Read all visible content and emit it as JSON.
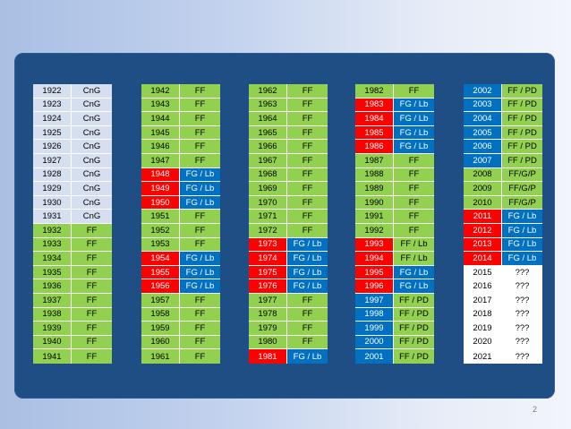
{
  "colors": {
    "light": "#d6dff0",
    "green": "#92d050",
    "red": "#ff0000",
    "blue": "#0070c0",
    "white": "#ffffff",
    "panel": "#1f4e85"
  },
  "columns": [
    {
      "rows": [
        {
          "year": "1922",
          "val": "CnG",
          "yc": "light",
          "vc": "light"
        },
        {
          "year": "1923",
          "val": "CnG",
          "yc": "light",
          "vc": "light"
        },
        {
          "year": "1924",
          "val": "CnG",
          "yc": "light",
          "vc": "light"
        },
        {
          "year": "1925",
          "val": "CnG",
          "yc": "light",
          "vc": "light"
        },
        {
          "year": "1926",
          "val": "CnG",
          "yc": "light",
          "vc": "light"
        },
        {
          "year": "1927",
          "val": "CnG",
          "yc": "light",
          "vc": "light"
        },
        {
          "year": "1928",
          "val": "CnG",
          "yc": "light",
          "vc": "light"
        },
        {
          "year": "1929",
          "val": "CnG",
          "yc": "light",
          "vc": "light"
        },
        {
          "year": "1930",
          "val": "CnG",
          "yc": "light",
          "vc": "light"
        },
        {
          "year": "1931",
          "val": "CnG",
          "yc": "light",
          "vc": "light"
        },
        {
          "year": "1932",
          "val": "FF",
          "yc": "green",
          "vc": "green"
        },
        {
          "year": "1933",
          "val": "FF",
          "yc": "green",
          "vc": "green"
        },
        {
          "year": "1934",
          "val": "FF",
          "yc": "green",
          "vc": "green"
        },
        {
          "year": "1935",
          "val": "FF",
          "yc": "green",
          "vc": "green"
        },
        {
          "year": "1936",
          "val": "FF",
          "yc": "green",
          "vc": "green"
        },
        {
          "year": "1937",
          "val": "FF",
          "yc": "green",
          "vc": "green"
        },
        {
          "year": "1938",
          "val": "FF",
          "yc": "green",
          "vc": "green"
        },
        {
          "year": "1939",
          "val": "FF",
          "yc": "green",
          "vc": "green"
        },
        {
          "year": "1940",
          "val": "FF",
          "yc": "green",
          "vc": "green"
        },
        {
          "year": "1941",
          "val": "FF",
          "yc": "green",
          "vc": "green"
        }
      ]
    },
    {
      "rows": [
        {
          "year": "1942",
          "val": "FF",
          "yc": "green",
          "vc": "green"
        },
        {
          "year": "1943",
          "val": "FF",
          "yc": "green",
          "vc": "green"
        },
        {
          "year": "1944",
          "val": "FF",
          "yc": "green",
          "vc": "green"
        },
        {
          "year": "1945",
          "val": "FF",
          "yc": "green",
          "vc": "green"
        },
        {
          "year": "1946",
          "val": "FF",
          "yc": "green",
          "vc": "green"
        },
        {
          "year": "1947",
          "val": "FF",
          "yc": "green",
          "vc": "green"
        },
        {
          "year": "1948",
          "val": "FG / Lb",
          "yc": "red",
          "vc": "blue"
        },
        {
          "year": "1949",
          "val": "FG / Lb",
          "yc": "red",
          "vc": "blue"
        },
        {
          "year": "1950",
          "val": "FG / Lb",
          "yc": "red",
          "vc": "blue"
        },
        {
          "year": "1951",
          "val": "FF",
          "yc": "green",
          "vc": "green"
        },
        {
          "year": "1952",
          "val": "FF",
          "yc": "green",
          "vc": "green"
        },
        {
          "year": "1953",
          "val": "FF",
          "yc": "green",
          "vc": "green"
        },
        {
          "year": "1954",
          "val": "FG / Lb",
          "yc": "red",
          "vc": "blue"
        },
        {
          "year": "1955",
          "val": "FG / Lb",
          "yc": "red",
          "vc": "blue"
        },
        {
          "year": "1956",
          "val": "FG / Lb",
          "yc": "red",
          "vc": "blue"
        },
        {
          "year": "1957",
          "val": "FF",
          "yc": "green",
          "vc": "green"
        },
        {
          "year": "1958",
          "val": "FF",
          "yc": "green",
          "vc": "green"
        },
        {
          "year": "1959",
          "val": "FF",
          "yc": "green",
          "vc": "green"
        },
        {
          "year": "1960",
          "val": "FF",
          "yc": "green",
          "vc": "green"
        },
        {
          "year": "1961",
          "val": "FF",
          "yc": "green",
          "vc": "green"
        }
      ]
    },
    {
      "rows": [
        {
          "year": "1962",
          "val": "FF",
          "yc": "green",
          "vc": "green"
        },
        {
          "year": "1963",
          "val": "FF",
          "yc": "green",
          "vc": "green"
        },
        {
          "year": "1964",
          "val": "FF",
          "yc": "green",
          "vc": "green"
        },
        {
          "year": "1965",
          "val": "FF",
          "yc": "green",
          "vc": "green"
        },
        {
          "year": "1966",
          "val": "FF",
          "yc": "green",
          "vc": "green"
        },
        {
          "year": "1967",
          "val": "FF",
          "yc": "green",
          "vc": "green"
        },
        {
          "year": "1968",
          "val": "FF",
          "yc": "green",
          "vc": "green"
        },
        {
          "year": "1969",
          "val": "FF",
          "yc": "green",
          "vc": "green"
        },
        {
          "year": "1970",
          "val": "FF",
          "yc": "green",
          "vc": "green"
        },
        {
          "year": "1971",
          "val": "FF",
          "yc": "green",
          "vc": "green"
        },
        {
          "year": "1972",
          "val": "FF",
          "yc": "green",
          "vc": "green"
        },
        {
          "year": "1973",
          "val": "FG / Lb",
          "yc": "red",
          "vc": "blue"
        },
        {
          "year": "1974",
          "val": "FG / Lb",
          "yc": "red",
          "vc": "blue"
        },
        {
          "year": "1975",
          "val": "FG / Lb",
          "yc": "red",
          "vc": "blue"
        },
        {
          "year": "1976",
          "val": "FG / Lb",
          "yc": "red",
          "vc": "blue"
        },
        {
          "year": "1977",
          "val": "FF",
          "yc": "green",
          "vc": "green"
        },
        {
          "year": "1978",
          "val": "FF",
          "yc": "green",
          "vc": "green"
        },
        {
          "year": "1979",
          "val": "FF",
          "yc": "green",
          "vc": "green"
        },
        {
          "year": "1980",
          "val": "FF",
          "yc": "green",
          "vc": "green"
        },
        {
          "year": "1981",
          "val": "FG / Lb",
          "yc": "red",
          "vc": "blue"
        }
      ]
    },
    {
      "rows": [
        {
          "year": "1982",
          "val": "FF",
          "yc": "green",
          "vc": "green"
        },
        {
          "year": "1983",
          "val": "FG / Lb",
          "yc": "red",
          "vc": "blue"
        },
        {
          "year": "1984",
          "val": "FG / Lb",
          "yc": "red",
          "vc": "blue"
        },
        {
          "year": "1985",
          "val": "FG / Lb",
          "yc": "red",
          "vc": "blue"
        },
        {
          "year": "1986",
          "val": "FG / Lb",
          "yc": "red",
          "vc": "blue"
        },
        {
          "year": "1987",
          "val": "FF",
          "yc": "green",
          "vc": "green"
        },
        {
          "year": "1988",
          "val": "FF",
          "yc": "green",
          "vc": "green"
        },
        {
          "year": "1989",
          "val": "FF",
          "yc": "green",
          "vc": "green"
        },
        {
          "year": "1990",
          "val": "FF",
          "yc": "green",
          "vc": "green"
        },
        {
          "year": "1991",
          "val": "FF",
          "yc": "green",
          "vc": "green"
        },
        {
          "year": "1992",
          "val": "FF",
          "yc": "green",
          "vc": "green"
        },
        {
          "year": "1993",
          "val": "FF / Lb",
          "yc": "red",
          "vc": "green"
        },
        {
          "year": "1994",
          "val": "FF / Lb",
          "yc": "red",
          "vc": "green"
        },
        {
          "year": "1995",
          "val": "FG / Lb",
          "yc": "red",
          "vc": "blue"
        },
        {
          "year": "1996",
          "val": "FG / Lb",
          "yc": "red",
          "vc": "blue"
        },
        {
          "year": "1997",
          "val": "FF / PD",
          "yc": "blue",
          "vc": "green"
        },
        {
          "year": "1998",
          "val": "FF / PD",
          "yc": "blue",
          "vc": "green"
        },
        {
          "year": "1999",
          "val": "FF / PD",
          "yc": "blue",
          "vc": "green"
        },
        {
          "year": "2000",
          "val": "FF / PD",
          "yc": "blue",
          "vc": "green"
        },
        {
          "year": "2001",
          "val": "FF / PD",
          "yc": "blue",
          "vc": "green"
        }
      ]
    },
    {
      "rows": [
        {
          "year": "2002",
          "val": "FF / PD",
          "yc": "blue",
          "vc": "green"
        },
        {
          "year": "2003",
          "val": "FF / PD",
          "yc": "blue",
          "vc": "green"
        },
        {
          "year": "2004",
          "val": "FF / PD",
          "yc": "blue",
          "vc": "green"
        },
        {
          "year": "2005",
          "val": "FF / PD",
          "yc": "blue",
          "vc": "green"
        },
        {
          "year": "2006",
          "val": "FF / PD",
          "yc": "blue",
          "vc": "green"
        },
        {
          "year": "2007",
          "val": "FF / PD",
          "yc": "blue",
          "vc": "green"
        },
        {
          "year": "2008",
          "val": "FF/G/P",
          "yc": "green",
          "vc": "green"
        },
        {
          "year": "2009",
          "val": "FF/G/P",
          "yc": "green",
          "vc": "green"
        },
        {
          "year": "2010",
          "val": "FF/G/P",
          "yc": "green",
          "vc": "green"
        },
        {
          "year": "2011",
          "val": "FG / Lb",
          "yc": "red",
          "vc": "blue"
        },
        {
          "year": "2012",
          "val": "FG / Lb",
          "yc": "red",
          "vc": "blue"
        },
        {
          "year": "2013",
          "val": "FG / Lb",
          "yc": "red",
          "vc": "blue"
        },
        {
          "year": "2014",
          "val": "FG / Lb",
          "yc": "red",
          "vc": "blue"
        },
        {
          "year": "2015",
          "val": "???",
          "yc": "white",
          "vc": "white"
        },
        {
          "year": "2016",
          "val": "???",
          "yc": "white",
          "vc": "white"
        },
        {
          "year": "2017",
          "val": "???",
          "yc": "white",
          "vc": "white"
        },
        {
          "year": "2018",
          "val": "???",
          "yc": "white",
          "vc": "white"
        },
        {
          "year": "2019",
          "val": "???",
          "yc": "white",
          "vc": "white"
        },
        {
          "year": "2020",
          "val": "???",
          "yc": "white",
          "vc": "white"
        },
        {
          "year": "2021",
          "val": "???",
          "yc": "white",
          "vc": "white"
        }
      ]
    }
  ],
  "page_number": "2"
}
